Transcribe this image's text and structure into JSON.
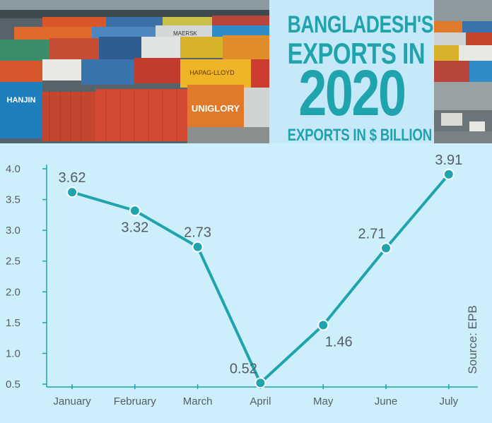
{
  "header": {
    "title_line1": "BANGLADESH'S",
    "title_line2": "EXPORTS IN",
    "title_year": "2020",
    "subtitle": "EXPORTS IN $ BILLION"
  },
  "container_brands": [
    "MAERSK",
    "HANJIN",
    "UNIGLORY",
    "HAPAG-LLOYD"
  ],
  "source": "Source: EPB",
  "colors": {
    "accent": "#1fa3ad",
    "chart_bg": "#cdeefb",
    "title_bg": "#c6e9f9",
    "text": "#555e63"
  },
  "chart_data": {
    "type": "line",
    "title": "",
    "xlabel": "",
    "ylabel": "",
    "categories": [
      "January",
      "February",
      "March",
      "April",
      "May",
      "June",
      "July"
    ],
    "values": [
      3.62,
      3.32,
      2.73,
      0.52,
      1.46,
      2.71,
      3.91
    ],
    "value_labels": [
      "3.62",
      "3.32",
      "2.73",
      "0.52",
      "1.46",
      "2.71",
      "3.91"
    ],
    "ylim": [
      0.5,
      4.0
    ],
    "yticks": [
      "0.5",
      "1.0",
      "1.5",
      "2.0",
      "2.5",
      "3.0",
      "3.5",
      "4.0"
    ],
    "grid": false,
    "legend": "none"
  }
}
